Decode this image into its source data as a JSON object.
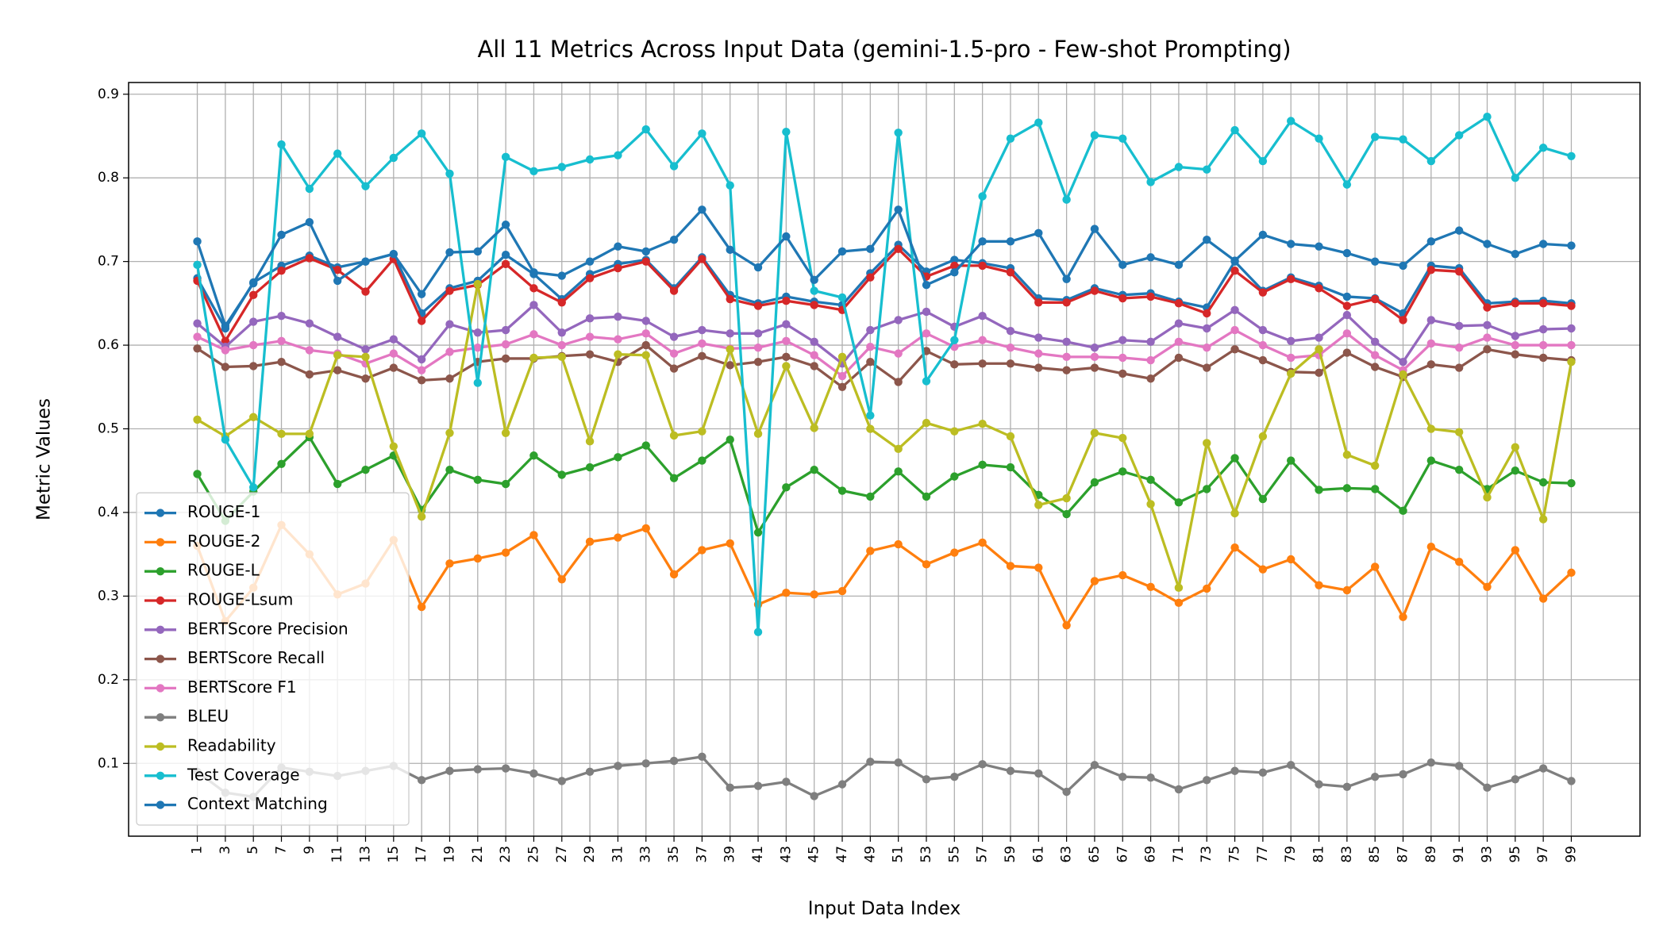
{
  "chart_data": {
    "type": "line",
    "title": "All 11 Metrics Across Input Data (gemini-1.5-pro - Few-shot Prompting)",
    "x_label": "Input Data Index",
    "y_label": "Metric Values",
    "x": [
      1,
      3,
      5,
      7,
      9,
      11,
      13,
      15,
      17,
      19,
      21,
      23,
      25,
      27,
      29,
      31,
      33,
      35,
      37,
      39,
      41,
      43,
      45,
      47,
      49,
      51,
      53,
      55,
      57,
      59,
      61,
      63,
      65,
      67,
      69,
      71,
      73,
      75,
      77,
      79,
      81,
      83,
      85,
      87,
      89,
      91,
      93,
      95,
      97,
      99
    ],
    "xlim": [
      -3.9,
      103.9
    ],
    "xticks": [
      1,
      3,
      5,
      7,
      9,
      11,
      13,
      15,
      17,
      19,
      21,
      23,
      25,
      27,
      29,
      31,
      33,
      35,
      37,
      39,
      41,
      43,
      45,
      47,
      49,
      51,
      53,
      55,
      57,
      59,
      61,
      63,
      65,
      67,
      69,
      71,
      73,
      75,
      77,
      79,
      81,
      83,
      85,
      87,
      89,
      91,
      93,
      95,
      97,
      99
    ],
    "ylim": [
      0.013,
      0.914
    ],
    "yticks": [
      0.1,
      0.2,
      0.3,
      0.4,
      0.5,
      0.6,
      0.7,
      0.8,
      0.9
    ],
    "grid": true,
    "legend": "lower left",
    "series": [
      {
        "name": "ROUGE-1",
        "color": "#1f77b4",
        "values": [
          0.68,
          0.62,
          0.675,
          0.695,
          0.707,
          0.693,
          0.7,
          0.709,
          0.638,
          0.668,
          0.677,
          0.708,
          0.685,
          0.655,
          0.685,
          0.697,
          0.702,
          0.668,
          0.705,
          0.66,
          0.65,
          0.658,
          0.652,
          0.648,
          0.686,
          0.72,
          0.688,
          0.702,
          0.698,
          0.692,
          0.656,
          0.654,
          0.668,
          0.66,
          0.662,
          0.652,
          0.645,
          0.7,
          0.665,
          0.681,
          0.671,
          0.658,
          0.656,
          0.638,
          0.695,
          0.692,
          0.65,
          0.652,
          0.653,
          0.65
        ]
      },
      {
        "name": "ROUGE-2",
        "color": "#ff7f0e",
        "values": [
          0.36,
          0.27,
          0.31,
          0.385,
          0.35,
          0.302,
          0.315,
          0.367,
          0.287,
          0.339,
          0.345,
          0.352,
          0.373,
          0.32,
          0.365,
          0.37,
          0.381,
          0.326,
          0.355,
          0.363,
          0.29,
          0.304,
          0.302,
          0.306,
          0.354,
          0.362,
          0.338,
          0.352,
          0.364,
          0.336,
          0.334,
          0.265,
          0.318,
          0.325,
          0.311,
          0.292,
          0.309,
          0.358,
          0.332,
          0.344,
          0.313,
          0.307,
          0.335,
          0.275,
          0.359,
          0.341,
          0.311,
          0.355,
          0.297,
          0.328
        ]
      },
      {
        "name": "ROUGE-L",
        "color": "#2ca02c",
        "values": [
          0.446,
          0.39,
          0.425,
          0.458,
          0.49,
          0.434,
          0.451,
          0.468,
          0.403,
          0.451,
          0.439,
          0.434,
          0.468,
          0.445,
          0.454,
          0.466,
          0.48,
          0.441,
          0.462,
          0.487,
          0.376,
          0.43,
          0.451,
          0.426,
          0.419,
          0.449,
          0.419,
          0.443,
          0.457,
          0.454,
          0.421,
          0.398,
          0.436,
          0.449,
          0.439,
          0.412,
          0.428,
          0.465,
          0.416,
          0.462,
          0.427,
          0.429,
          0.428,
          0.402,
          0.462,
          0.451,
          0.428,
          0.45,
          0.436,
          0.435
        ]
      },
      {
        "name": "ROUGE-Lsum",
        "color": "#d62728",
        "values": [
          0.677,
          0.605,
          0.66,
          0.689,
          0.704,
          0.69,
          0.664,
          0.703,
          0.629,
          0.665,
          0.672,
          0.697,
          0.668,
          0.651,
          0.68,
          0.692,
          0.7,
          0.665,
          0.703,
          0.655,
          0.647,
          0.653,
          0.648,
          0.642,
          0.681,
          0.715,
          0.682,
          0.695,
          0.695,
          0.687,
          0.651,
          0.651,
          0.665,
          0.656,
          0.658,
          0.65,
          0.638,
          0.689,
          0.663,
          0.679,
          0.668,
          0.647,
          0.655,
          0.63,
          0.69,
          0.688,
          0.645,
          0.65,
          0.65,
          0.647
        ]
      },
      {
        "name": "BERTScore Precision",
        "color": "#9467bd",
        "values": [
          0.626,
          0.598,
          0.628,
          0.635,
          0.626,
          0.61,
          0.595,
          0.607,
          0.583,
          0.625,
          0.615,
          0.618,
          0.648,
          0.615,
          0.632,
          0.634,
          0.629,
          0.61,
          0.618,
          0.614,
          0.614,
          0.625,
          0.604,
          0.578,
          0.618,
          0.63,
          0.64,
          0.622,
          0.635,
          0.617,
          0.609,
          0.604,
          0.597,
          0.606,
          0.604,
          0.626,
          0.62,
          0.642,
          0.618,
          0.605,
          0.609,
          0.636,
          0.604,
          0.58,
          0.63,
          0.623,
          0.624,
          0.611,
          0.619,
          0.62
        ]
      },
      {
        "name": "BERTScore Recall",
        "color": "#8c564b",
        "values": [
          0.596,
          0.574,
          0.575,
          0.58,
          0.565,
          0.57,
          0.56,
          0.573,
          0.558,
          0.56,
          0.58,
          0.584,
          0.584,
          0.587,
          0.589,
          0.58,
          0.6,
          0.572,
          0.587,
          0.576,
          0.58,
          0.586,
          0.575,
          0.55,
          0.58,
          0.556,
          0.593,
          0.577,
          0.578,
          0.578,
          0.573,
          0.57,
          0.573,
          0.566,
          0.56,
          0.585,
          0.573,
          0.595,
          0.582,
          0.568,
          0.567,
          0.591,
          0.574,
          0.562,
          0.577,
          0.573,
          0.595,
          0.589,
          0.585,
          0.582
        ]
      },
      {
        "name": "BERTScore F1",
        "color": "#e377c2",
        "values": [
          0.61,
          0.594,
          0.6,
          0.605,
          0.594,
          0.59,
          0.578,
          0.59,
          0.57,
          0.592,
          0.597,
          0.601,
          0.613,
          0.6,
          0.61,
          0.607,
          0.614,
          0.59,
          0.602,
          0.596,
          0.597,
          0.605,
          0.588,
          0.563,
          0.598,
          0.59,
          0.614,
          0.598,
          0.606,
          0.597,
          0.59,
          0.586,
          0.586,
          0.585,
          0.582,
          0.604,
          0.597,
          0.618,
          0.6,
          0.585,
          0.588,
          0.614,
          0.588,
          0.57,
          0.602,
          0.597,
          0.609,
          0.6,
          0.6,
          0.6
        ]
      },
      {
        "name": "BLEU",
        "color": "#7f7f7f",
        "values": [
          0.09,
          0.065,
          0.06,
          0.095,
          0.09,
          0.085,
          0.091,
          0.097,
          0.08,
          0.091,
          0.093,
          0.094,
          0.088,
          0.079,
          0.09,
          0.097,
          0.1,
          0.103,
          0.108,
          0.071,
          0.073,
          0.078,
          0.061,
          0.075,
          0.102,
          0.101,
          0.081,
          0.084,
          0.099,
          0.091,
          0.088,
          0.066,
          0.098,
          0.084,
          0.083,
          0.069,
          0.08,
          0.091,
          0.089,
          0.098,
          0.075,
          0.072,
          0.084,
          0.087,
          0.101,
          0.097,
          0.071,
          0.081,
          0.094,
          0.079
        ]
      },
      {
        "name": "Readability",
        "color": "#bcbd22",
        "values": [
          0.511,
          0.491,
          0.514,
          0.494,
          0.494,
          0.588,
          0.586,
          0.479,
          0.395,
          0.495,
          0.673,
          0.495,
          0.585,
          0.586,
          0.485,
          0.589,
          0.588,
          0.492,
          0.497,
          0.595,
          0.494,
          0.575,
          0.501,
          0.586,
          0.5,
          0.476,
          0.507,
          0.497,
          0.506,
          0.491,
          0.409,
          0.417,
          0.495,
          0.489,
          0.41,
          0.31,
          0.483,
          0.399,
          0.491,
          0.566,
          0.595,
          0.469,
          0.456,
          0.565,
          0.5,
          0.496,
          0.418,
          0.478,
          0.392,
          0.58
        ]
      },
      {
        "name": "Test Coverage",
        "color": "#17becf",
        "values": [
          0.696,
          0.487,
          0.43,
          0.84,
          0.787,
          0.829,
          0.79,
          0.824,
          0.853,
          0.805,
          0.555,
          0.825,
          0.808,
          0.813,
          0.822,
          0.827,
          0.858,
          0.814,
          0.853,
          0.791,
          0.257,
          0.855,
          0.665,
          0.657,
          0.516,
          0.854,
          0.557,
          0.606,
          0.778,
          0.847,
          0.866,
          0.774,
          0.851,
          0.847,
          0.795,
          0.813,
          0.81,
          0.857,
          0.82,
          0.868,
          0.847,
          0.792,
          0.849,
          0.846,
          0.82,
          0.851,
          0.873,
          0.8,
          0.836,
          0.826
        ]
      },
      {
        "name": "Context Matching",
        "color": "#1f77b4",
        "values": [
          0.724,
          0.623,
          0.674,
          0.732,
          0.747,
          0.677,
          0.7,
          0.709,
          0.661,
          0.711,
          0.712,
          0.744,
          0.687,
          0.683,
          0.7,
          0.718,
          0.712,
          0.726,
          0.762,
          0.714,
          0.693,
          0.73,
          0.678,
          0.712,
          0.715,
          0.762,
          0.672,
          0.687,
          0.724,
          0.724,
          0.734,
          0.679,
          0.739,
          0.696,
          0.705,
          0.696,
          0.726,
          0.701,
          0.732,
          0.721,
          0.718,
          0.71,
          0.7,
          0.695,
          0.724,
          0.737,
          0.721,
          0.709,
          0.721,
          0.719
        ]
      }
    ]
  }
}
